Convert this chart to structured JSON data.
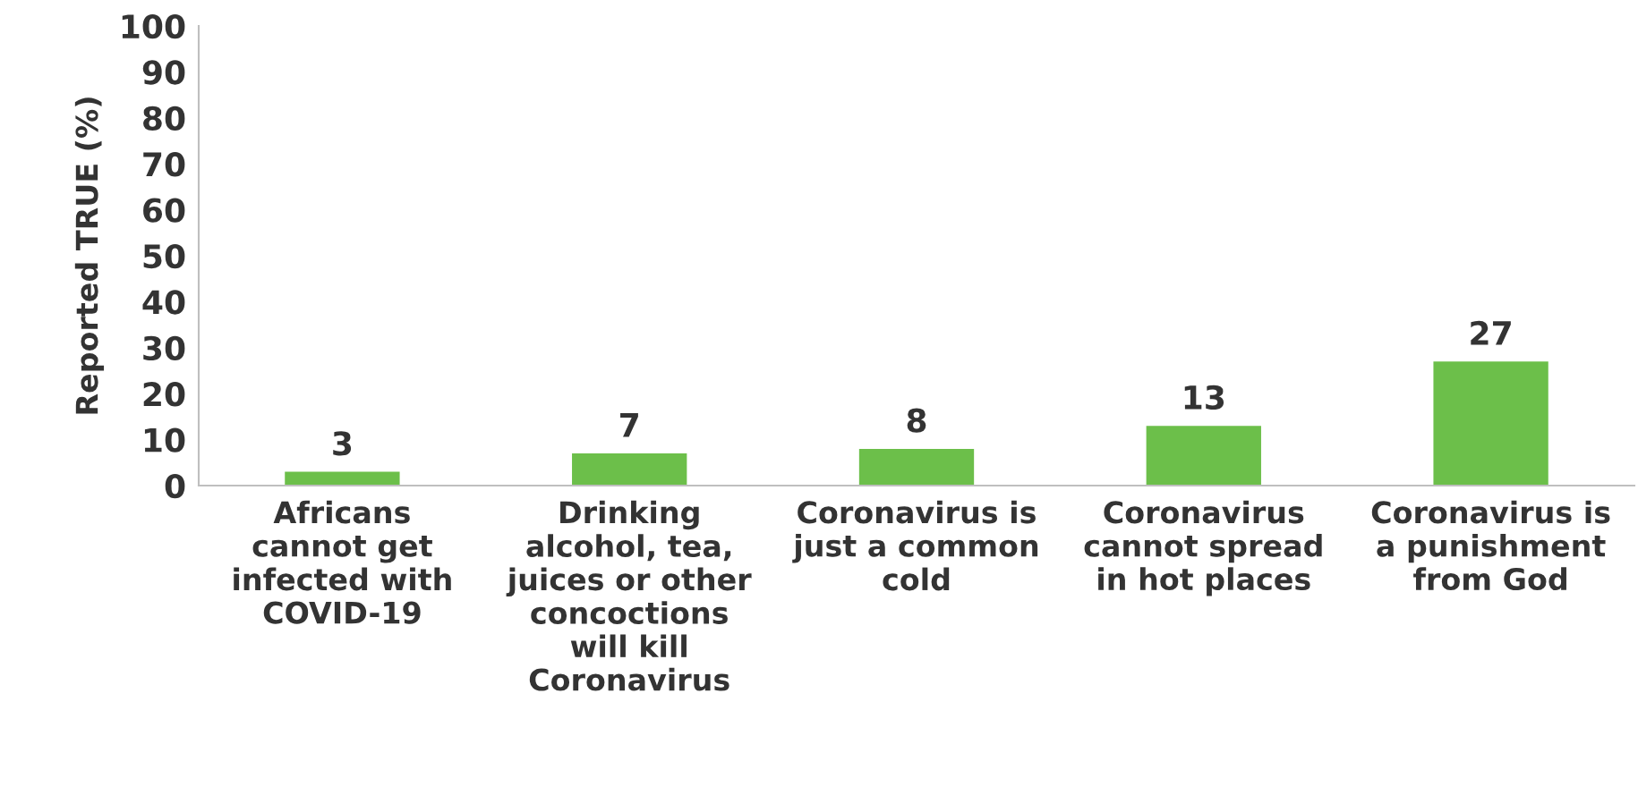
{
  "chart_data": {
    "type": "bar",
    "ylabel": "Reported TRUE (%)",
    "categories": [
      "Africans\ncannot get\ninfected with\nCOVID-19",
      "Drinking\nalcohol, tea,\njuices or other\nconcoctions\nwill kill\nCoronavirus",
      "Coronavirus is\njust a common\ncold",
      "Coronavirus\ncannot spread\nin hot places",
      "Coronavirus is\na punishment\nfrom God"
    ],
    "values": [
      3,
      7,
      8,
      13,
      27
    ],
    "color": "#6cbf4a",
    "ylim": [
      0,
      100
    ],
    "yticks": [
      0,
      10,
      20,
      30,
      40,
      50,
      60,
      70,
      80,
      90,
      100
    ],
    "data_labels": true,
    "grid": false,
    "legend": false
  }
}
